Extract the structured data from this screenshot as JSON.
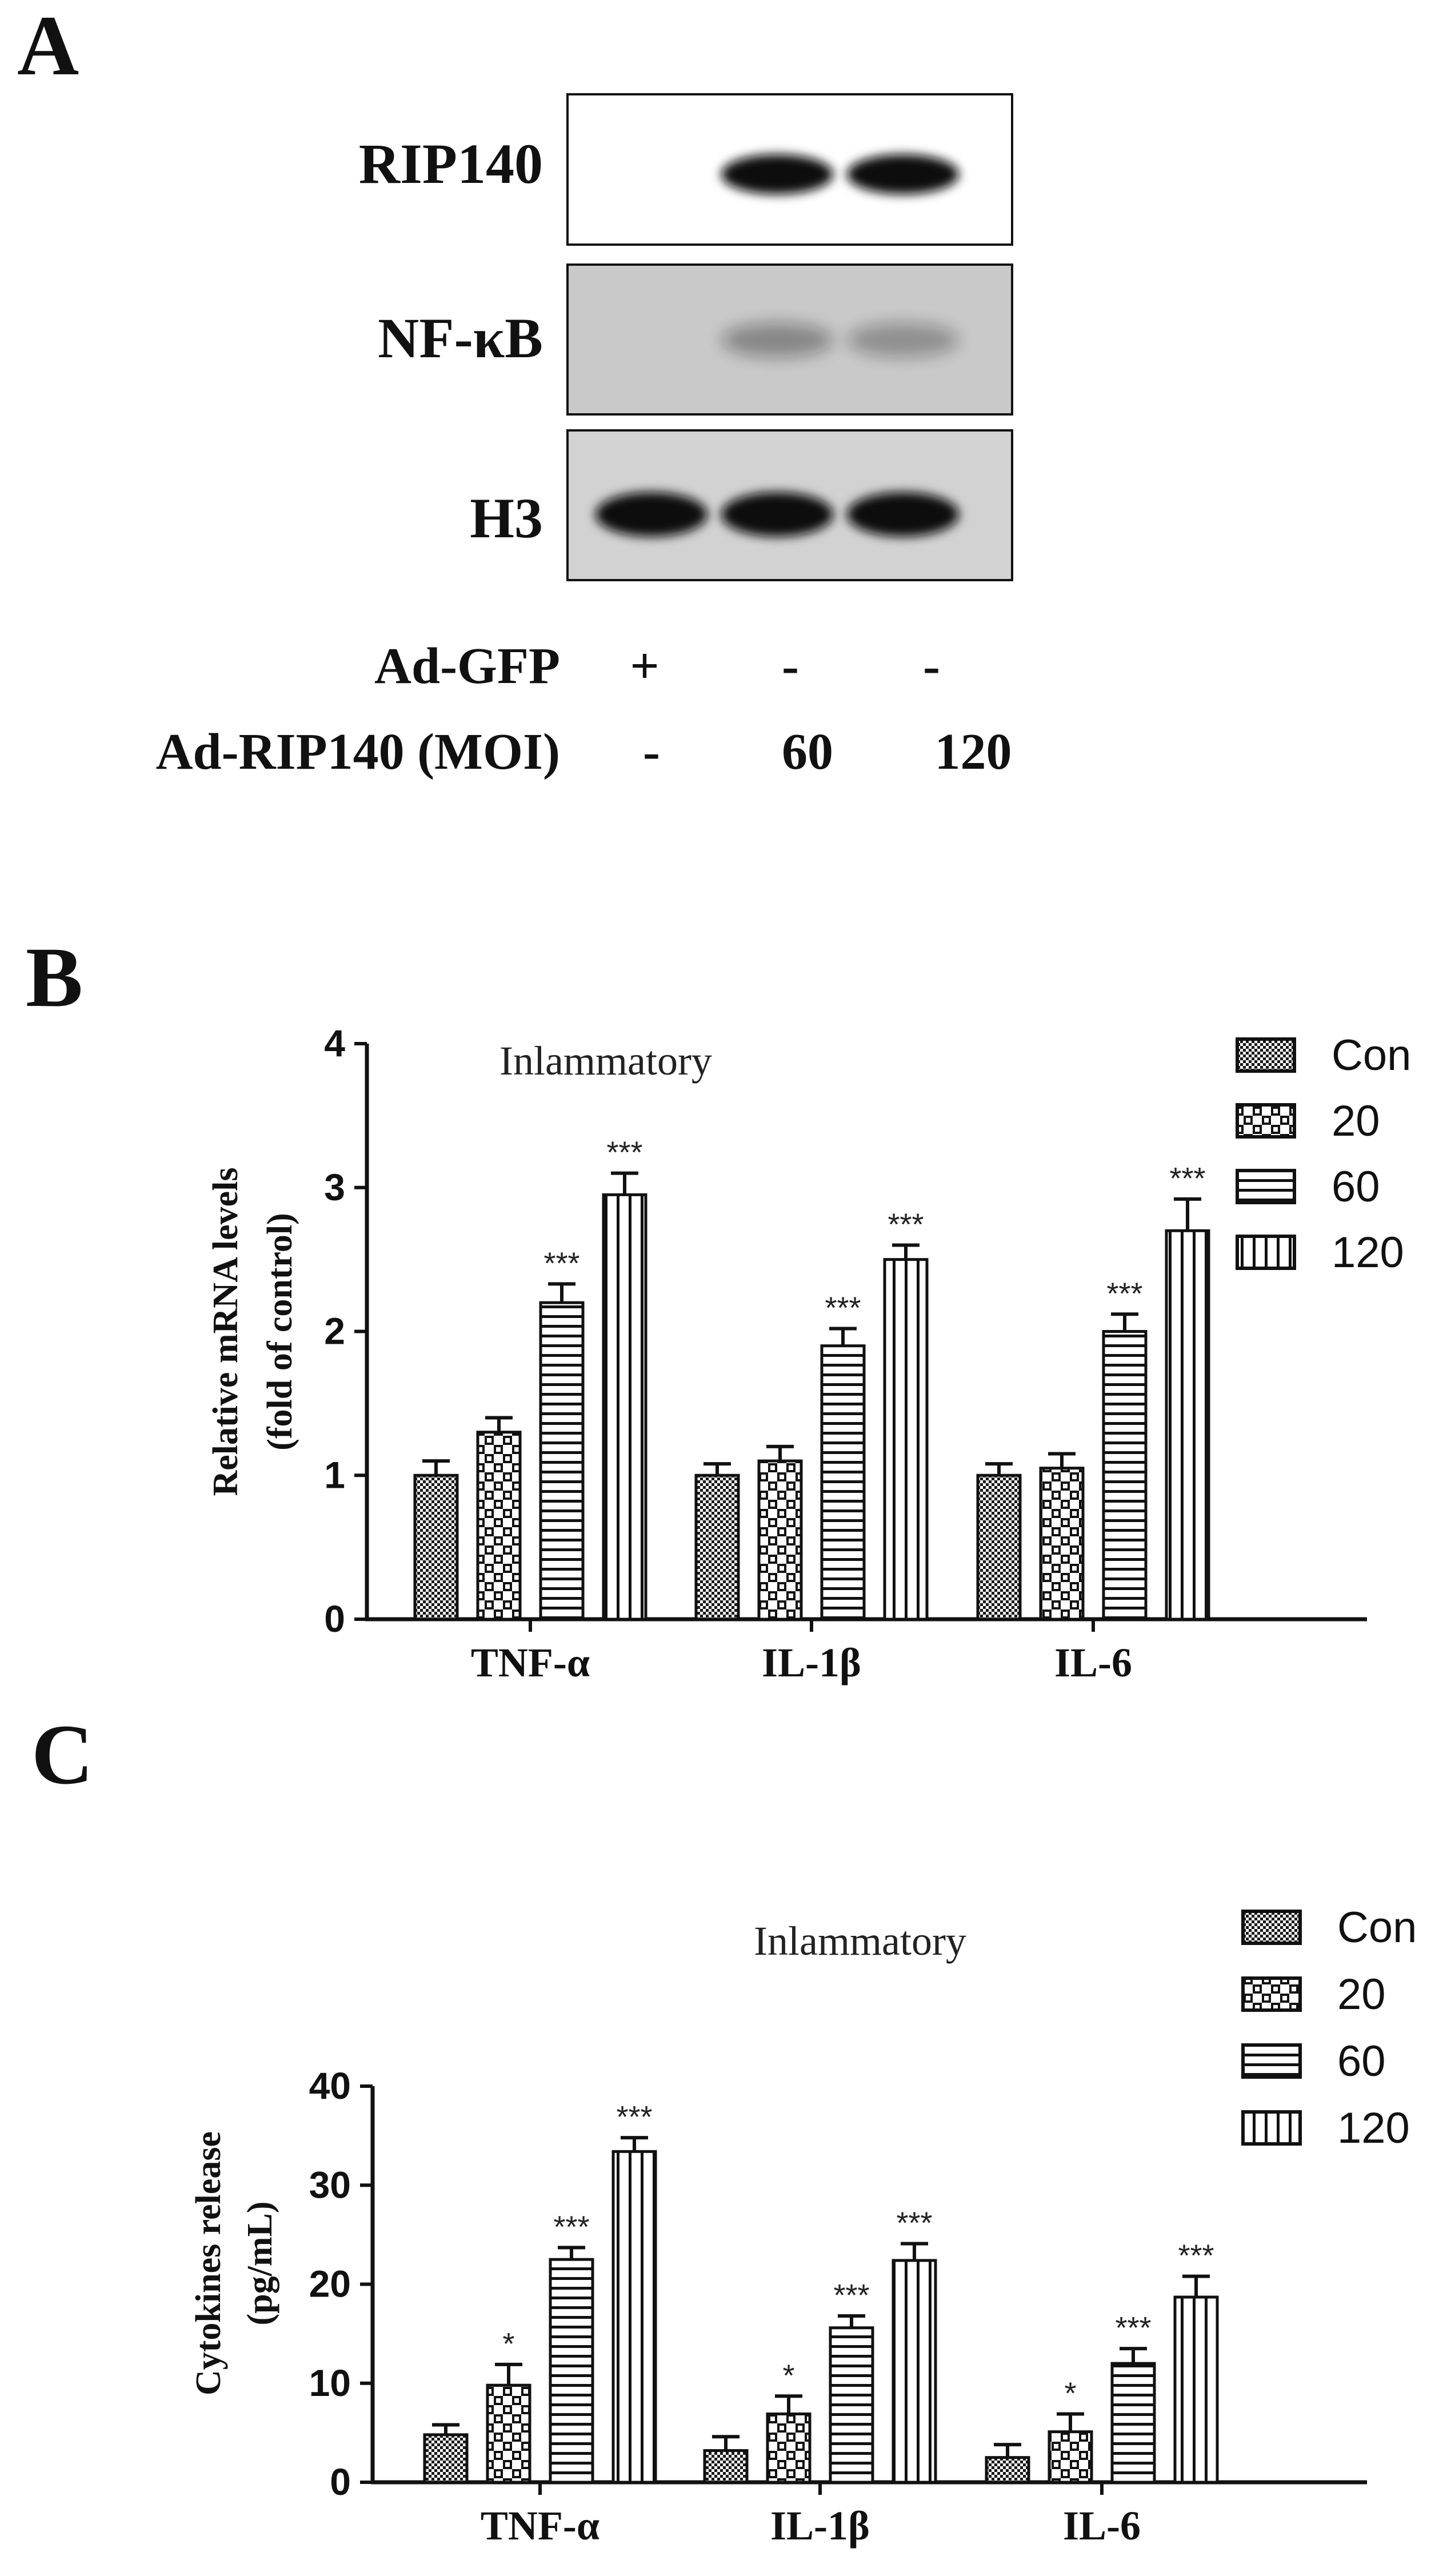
{
  "panel_a": {
    "letter": "A",
    "blot_labels": [
      "RIP140",
      "NF-κB",
      "H3"
    ],
    "conditions": [
      {
        "label": "Ad-GFP",
        "values": [
          "+",
          "-",
          "-"
        ]
      },
      {
        "label": "Ad-RIP140 (MOI)",
        "values": [
          "-",
          "60",
          "120"
        ]
      }
    ],
    "band_intensity": {
      "RIP140": [
        0.0,
        1.0,
        1.0
      ],
      "NF-κB": [
        0.0,
        0.35,
        0.3
      ],
      "H3": [
        1.0,
        1.0,
        1.0
      ]
    }
  },
  "chart_data": [
    {
      "panel": "B",
      "type": "bar",
      "title": "Inlammatory",
      "xlabel": "",
      "ylabel": "Relative mRNA levels",
      "ylabel2": "(fold of control)",
      "categories": [
        "TNF-α",
        "IL-1β",
        "IL-6"
      ],
      "ylim": [
        0,
        4
      ],
      "yticks": [
        0,
        1,
        2,
        3,
        4
      ],
      "legend_position": "top-right",
      "series": [
        {
          "name": "Con",
          "pattern": "checker",
          "values": [
            1.0,
            1.0,
            1.0
          ],
          "errors": [
            0.1,
            0.08,
            0.08
          ],
          "sig": [
            "",
            "",
            ""
          ]
        },
        {
          "name": "20",
          "pattern": "cross",
          "values": [
            1.3,
            1.1,
            1.05
          ],
          "errors": [
            0.1,
            0.1,
            0.1
          ],
          "sig": [
            "",
            "",
            ""
          ]
        },
        {
          "name": "60",
          "pattern": "hlines",
          "values": [
            2.2,
            1.9,
            2.0
          ],
          "errors": [
            0.13,
            0.12,
            0.12
          ],
          "sig": [
            "***",
            "***",
            "***"
          ]
        },
        {
          "name": "120",
          "pattern": "vlines",
          "values": [
            2.95,
            2.5,
            2.7
          ],
          "errors": [
            0.15,
            0.1,
            0.22
          ],
          "sig": [
            "***",
            "***",
            "***"
          ]
        }
      ]
    },
    {
      "panel": "C",
      "type": "bar",
      "title": "Inlammatory",
      "xlabel": "",
      "ylabel": "Cytokines release",
      "ylabel2": "(pg/mL)",
      "categories": [
        "TNF-α",
        "IL-1β",
        "IL-6"
      ],
      "ylim": [
        0,
        40
      ],
      "yticks": [
        0,
        10,
        20,
        30,
        40
      ],
      "legend_position": "top-right",
      "series": [
        {
          "name": "Con",
          "pattern": "checker",
          "values": [
            4.8,
            3.2,
            2.5
          ],
          "errors": [
            1.0,
            1.4,
            1.3
          ],
          "sig": [
            "",
            "",
            ""
          ]
        },
        {
          "name": "20",
          "pattern": "cross",
          "values": [
            9.8,
            6.9,
            5.1
          ],
          "errors": [
            2.1,
            1.8,
            1.8
          ],
          "sig": [
            "*",
            "*",
            "*"
          ]
        },
        {
          "name": "60",
          "pattern": "hlines",
          "values": [
            22.5,
            15.6,
            12.0
          ],
          "errors": [
            1.2,
            1.2,
            1.5
          ],
          "sig": [
            "***",
            "***",
            "***"
          ]
        },
        {
          "name": "120",
          "pattern": "vlines",
          "values": [
            33.4,
            22.4,
            18.7
          ],
          "errors": [
            1.4,
            1.7,
            2.1
          ],
          "sig": [
            "***",
            "***",
            "***"
          ]
        }
      ]
    }
  ]
}
